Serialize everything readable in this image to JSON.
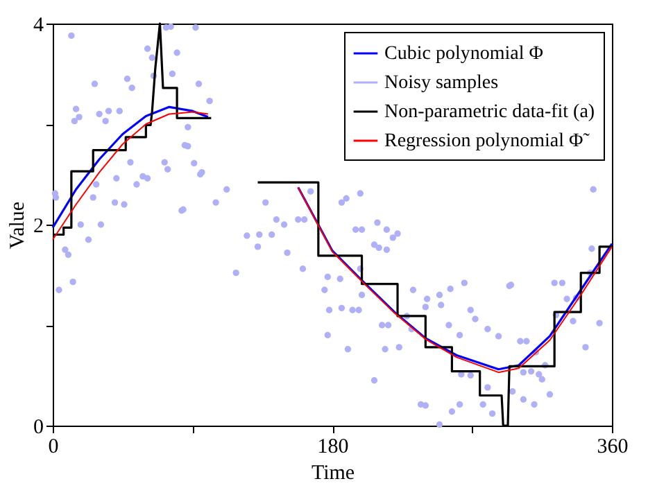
{
  "chart_data": {
    "type": "line",
    "xlabel": "Time",
    "ylabel": "Value",
    "xlim": [
      0,
      360
    ],
    "xticks": [
      0,
      {
        "value": 90,
        "label": null
      },
      180,
      {
        "value": 270,
        "label": null
      },
      360
    ],
    "ylim": [
      0,
      4
    ],
    "yticks": [
      0,
      {
        "value": 1,
        "label": null
      },
      2,
      {
        "value": 3,
        "label": null
      },
      4
    ],
    "grid": false,
    "legend": "top right",
    "series": [
      {
        "name": "Cubic polynomial Φ",
        "color": "#0000ff",
        "x": [
          0,
          15,
          30,
          45,
          60,
          75,
          90,
          100,
          120,
          140,
          158,
          180,
          200,
          220,
          240,
          260,
          287,
          300,
          320,
          340,
          360
        ],
        "values": [
          1.97,
          2.35,
          2.65,
          2.9,
          3.08,
          3.17,
          3.13,
          3.07,
          null,
          null,
          2.37,
          1.74,
          1.43,
          1.13,
          0.87,
          0.7,
          0.56,
          0.6,
          0.89,
          1.35,
          1.81
        ]
      },
      {
        "name": "Noisy samples",
        "type": "scatter",
        "color": "#b0b0f8",
        "marker": "circle",
        "x": [
          12,
          27,
          15,
          14,
          17,
          30,
          34,
          36,
          43,
          48,
          51,
          1.5,
          2,
          4,
          8,
          10,
          13,
          18,
          23,
          31,
          26,
          28,
          40,
          46,
          41,
          50,
          54,
          58,
          61,
          61,
          64,
          65,
          73,
          76,
          92,
          80,
          77,
          72,
          74,
          85,
          87,
          87,
          91,
          83,
          84,
          94,
          95,
          96,
          101,
          105,
          112,
          118,
          125,
          132,
          133,
          141,
          144,
          149,
          151,
          158,
          137,
          162,
          166,
          189,
          198,
          209,
          215,
          219,
          222,
          195,
          199,
          207,
          210,
          215,
          186,
          161,
          177,
          185,
          198,
          175,
          199,
          186,
          193,
          197,
          178,
          177,
          190,
          207,
          212,
          216,
          232,
          241,
          249,
          256,
          265,
          240,
          250,
          255,
          228,
          231,
          223,
          214,
          262,
          269,
          272,
          280,
          294,
          295,
          287,
          301,
          305,
          311,
          317,
          313,
          308,
          303,
          315,
          320,
          296,
          303,
          310,
          280,
          277,
          283,
          257,
          262,
          237,
          240,
          249,
          263,
          269,
          323,
          328,
          331,
          337,
          324,
          343,
          335,
          346,
          347,
          352,
          348
        ],
        "values": [
          3.88,
          3.4,
          3.15,
          3.03,
          3.07,
          3.1,
          3.03,
          3.13,
          3.13,
          3.45,
          3.36,
          2.31,
          2.27,
          1.35,
          1.75,
          1.7,
          1.43,
          2.0,
          1.85,
          2.0,
          2.27,
          2.4,
          2.22,
          2.2,
          2.46,
          2.62,
          2.4,
          2.48,
          2.46,
          3.75,
          3.66,
          3.48,
          3.96,
          3.97,
          3.96,
          3.71,
          3.5,
          2.62,
          2.55,
          2.79,
          2.97,
          2.78,
          2.61,
          2.14,
          2.15,
          3.4,
          2.5,
          2.52,
          3.23,
          2.22,
          2.35,
          1.52,
          1.89,
          1.78,
          1.9,
          1.9,
          2.05,
          2.0,
          1.72,
          2.05,
          2.22,
          2.05,
          2.33,
          2.26,
          2.31,
          2.02,
          1.95,
          1.87,
          1.91,
          1.95,
          1.95,
          1.8,
          1.77,
          1.75,
          2.22,
          1.56,
          1.48,
          1.46,
          1.56,
          1.35,
          1.3,
          1.17,
          1.15,
          1.15,
          1.15,
          0.9,
          0.76,
          0.45,
          1.0,
          1.0,
          1.35,
          1.26,
          1.3,
          1.36,
          1.42,
          1.18,
          1.2,
          1.0,
          1.09,
          0.96,
          0.78,
          0.76,
          0.9,
          1.15,
          1.06,
          0.96,
          1.39,
          1.4,
          0.89,
          0.84,
          0.84,
          0.73,
          0.6,
          0.51,
          0.54,
          0.53,
          0.46,
          0.31,
          0.34,
          0.26,
          0.21,
          0.38,
          0.21,
          0.12,
          0.14,
          0.21,
          0.21,
          0.2,
          0.01,
          0.51,
          0.5,
          1.42,
          1.42,
          1.26,
          1.27,
          1.1,
          0.78,
          1.04,
          1.52,
          1.76,
          1.02,
          2.35
        ]
      },
      {
        "name": "Non-parametric data-fit (a)",
        "color": "#000000",
        "x": [
          0,
          7,
          7,
          12,
          12,
          26,
          26,
          47,
          47,
          60,
          60,
          63,
          64,
          66,
          69,
          71,
          80,
          80,
          102,
          117,
          132,
          171,
          171,
          199,
          199,
          222,
          222,
          240,
          240,
          257,
          257,
          275,
          275,
          289,
          290,
          293,
          294,
          323,
          323,
          340,
          340,
          352,
          352,
          360
        ],
        "values": [
          1.9,
          1.9,
          1.97,
          1.97,
          2.53,
          2.53,
          2.74,
          2.74,
          2.87,
          2.87,
          2.99,
          2.99,
          3.13,
          3.55,
          4.0,
          3.36,
          3.36,
          3.06,
          3.06,
          null,
          2.42,
          2.42,
          1.69,
          1.69,
          1.41,
          1.41,
          1.09,
          1.09,
          0.78,
          0.78,
          0.54,
          0.54,
          0.3,
          0.3,
          0,
          0,
          0.59,
          0.59,
          1.13,
          1.13,
          1.52,
          1.52,
          1.78,
          1.78
        ]
      },
      {
        "name": "Regression polynomial Φ̃",
        "color": "#ff0000",
        "x": [
          0,
          15,
          30,
          45,
          60,
          75,
          90,
          100,
          120,
          140,
          158,
          180,
          200,
          220,
          240,
          260,
          287,
          300,
          320,
          340,
          360
        ],
        "values": [
          1.85,
          2.2,
          2.52,
          2.8,
          3.0,
          3.1,
          3.12,
          3.1,
          null,
          null,
          2.37,
          1.73,
          1.42,
          1.12,
          0.86,
          0.68,
          0.53,
          0.57,
          0.85,
          1.3,
          1.78
        ]
      }
    ]
  }
}
